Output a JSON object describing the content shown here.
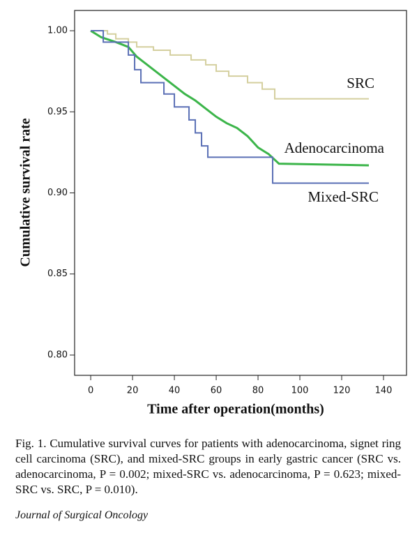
{
  "chart_data": {
    "type": "line",
    "ylabel": "Cumulative survival rate",
    "xlabel": "Time after operation(months)",
    "xlim": [
      -7.7,
      151
    ],
    "ylim": [
      0.7875,
      1.0125
    ],
    "xticks": [
      0,
      20,
      40,
      60,
      80,
      100,
      120,
      140
    ],
    "yticks": [
      {
        "value": 1,
        "label": "1.00"
      },
      0.95,
      {
        "value": 0.9,
        "label": "0.90"
      },
      0.85,
      {
        "value": 0.8,
        "label": "0.80"
      }
    ],
    "series": [
      {
        "name": "SRC",
        "color": "#d4cf9e",
        "x": [
          0,
          8,
          8,
          12,
          12,
          18,
          18,
          22,
          22,
          30,
          30,
          38,
          38,
          48,
          48,
          55,
          55,
          60,
          60,
          66,
          66,
          75,
          75,
          82,
          82,
          88,
          88,
          133
        ],
        "values": [
          1.0,
          1.0,
          0.998,
          0.998,
          0.995,
          0.995,
          0.993,
          0.993,
          0.99,
          0.99,
          0.988,
          0.988,
          0.985,
          0.985,
          0.982,
          0.982,
          0.979,
          0.979,
          0.975,
          0.975,
          0.972,
          0.972,
          0.968,
          0.968,
          0.964,
          0.964,
          0.958,
          0.958
        ]
      },
      {
        "name": "Adenocarcinoma",
        "color": "#3cb54a",
        "x": [
          0,
          5,
          12,
          18,
          22,
          25,
          30,
          35,
          40,
          45,
          50,
          55,
          60,
          65,
          70,
          75,
          80,
          85,
          90,
          133
        ],
        "values": [
          1.0,
          0.996,
          0.993,
          0.99,
          0.984,
          0.981,
          0.976,
          0.971,
          0.966,
          0.961,
          0.957,
          0.952,
          0.947,
          0.943,
          0.94,
          0.935,
          0.928,
          0.924,
          0.918,
          0.917
        ]
      },
      {
        "name": "Mixed-SRC",
        "color": "#5a6fb5",
        "x": [
          0,
          6,
          6,
          18,
          18,
          21,
          21,
          24,
          24,
          35,
          35,
          40,
          40,
          47,
          47,
          50,
          50,
          53,
          53,
          56,
          56,
          87,
          87,
          133
        ],
        "values": [
          1.0,
          1.0,
          0.993,
          0.993,
          0.985,
          0.985,
          0.976,
          0.976,
          0.968,
          0.968,
          0.961,
          0.961,
          0.953,
          0.953,
          0.945,
          0.945,
          0.937,
          0.937,
          0.929,
          0.929,
          0.922,
          0.922,
          0.906,
          0.906
        ]
      }
    ]
  },
  "caption": "Fig. 1.   Cumulative survival curves for patients with adenocarcinoma, signet ring cell carcinoma (SRC), and mixed-SRC groups in early gastric cancer (SRC vs. adenocarcinoma, P = 0.002; mixed-SRC vs. adenocarcinoma, P = 0.623; mixed-SRC vs. SRC, P = 0.010).",
  "journal": "Journal of Surgical Oncology"
}
